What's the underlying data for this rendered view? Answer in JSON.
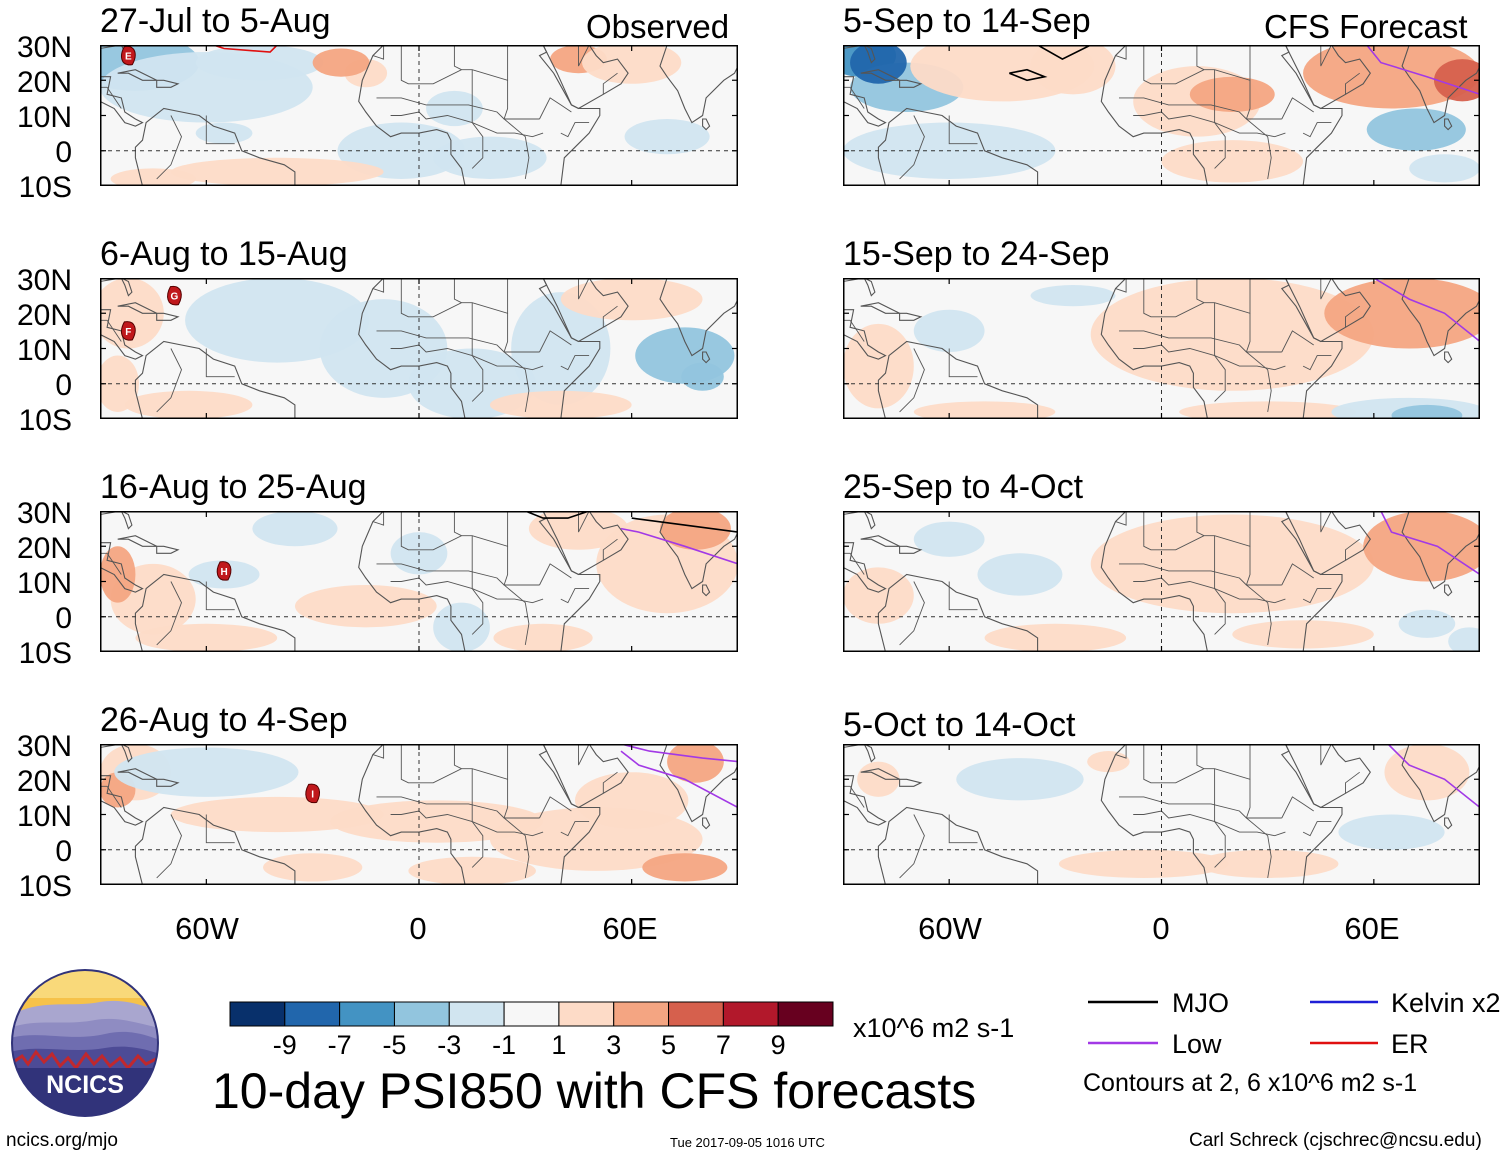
{
  "chart_data": {
    "type": "heatmap",
    "title": "10-day PSI850 with CFS forecasts",
    "variable": "PSI850 anomaly",
    "units": "x10^6 m2 s-1",
    "observed_label": "Observed",
    "forecast_label": "CFS Forecast",
    "lat_labels": [
      "30N",
      "20N",
      "10N",
      "0",
      "10S"
    ],
    "lat_range": [
      -10,
      30
    ],
    "lon_range": [
      -90,
      90
    ],
    "lon_labels": [
      "60W",
      "0",
      "60E"
    ],
    "observed_periods": [
      "27-Jul to 5-Aug",
      "6-Aug to 15-Aug",
      "16-Aug to 25-Aug",
      "26-Aug to 4-Sep"
    ],
    "forecast_periods": [
      "5-Sep to 14-Sep",
      "15-Sep to 24-Sep",
      "25-Sep to 4-Oct",
      "5-Oct to 14-Oct"
    ],
    "colorbar": {
      "levels": [
        "-9",
        "-7",
        "-5",
        "-3",
        "-1",
        "1",
        "3",
        "5",
        "7",
        "9"
      ],
      "colors": [
        "#08306b",
        "#2166ac",
        "#4393c3",
        "#92c5de",
        "#d1e5f0",
        "#f7f7f7",
        "#fddbc7",
        "#f4a582",
        "#d6604d",
        "#b2182b",
        "#67001f"
      ]
    },
    "contour_note": "Contours at 2, 6 x10^6 m2 s-1",
    "legend": [
      {
        "label": "MJO",
        "color": "#000000"
      },
      {
        "label": "Kelvin x2",
        "color": "#1f1fd6"
      },
      {
        "label": "Low",
        "color": "#a239e6"
      },
      {
        "label": "ER",
        "color": "#e01010"
      }
    ],
    "storm_markers": [
      {
        "panel": 0,
        "label": "E",
        "lon": -82,
        "lat": 27
      },
      {
        "panel": 1,
        "label": "G",
        "lon": -69,
        "lat": 25
      },
      {
        "panel": 1,
        "label": "F",
        "lon": -82,
        "lat": 15
      },
      {
        "panel": 2,
        "label": "H",
        "lon": -55,
        "lat": 13
      },
      {
        "panel": 3,
        "label": "I",
        "lon": -30,
        "lat": 16
      }
    ]
  },
  "footer": {
    "site": "ncics.org/mjo",
    "timestamp": "Tue 2017-09-05 1016 UTC",
    "credit": "Carl Schreck (cjschrec@ncsu.edu)",
    "logo_text": "NCICS"
  }
}
